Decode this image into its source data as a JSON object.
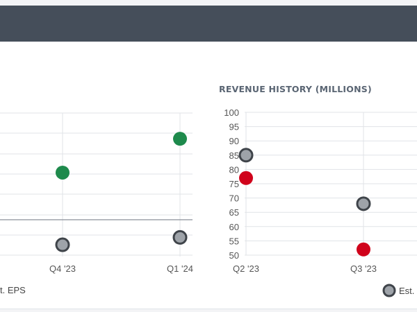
{
  "colors": {
    "header_bg": "#454e5a",
    "grid": "#e0e3e7",
    "eps_actual": "#1e8a4c",
    "estimate": "#9ea3a9",
    "estimate_stroke": "#3f444a",
    "revenue_actual": "#d0021b"
  },
  "eps_chart": {
    "legend_partial_text": "t. EPS"
  },
  "revenue_chart": {
    "title": "REVENUE HISTORY (MILLIONS)",
    "legend_partial_text": "Est. R"
  },
  "chart_data": [
    {
      "type": "scatter",
      "title": "",
      "categories": [
        "Q4 '23",
        "Q1 '24"
      ],
      "series": [
        {
          "name": "",
          "color": "#1e8a4c",
          "values": [
            0.64,
            1.1
          ]
        },
        {
          "name": "Est. EPS",
          "color": "#9ea3a9",
          "values": [
            -0.34,
            -0.24
          ]
        }
      ],
      "ylim": [
        -0.5,
        1.45
      ],
      "zero_line": 0,
      "grid": true,
      "legend": "bottom"
    },
    {
      "type": "scatter",
      "title": "REVENUE HISTORY (MILLIONS)",
      "categories": [
        "Q2 '23",
        "Q3 '23"
      ],
      "series": [
        {
          "name": "",
          "color": "#d0021b",
          "values": [
            77,
            52
          ]
        },
        {
          "name": "Est. R",
          "color": "#9ea3a9",
          "values": [
            85,
            68
          ]
        }
      ],
      "ylim": [
        50,
        100
      ],
      "yticks": [
        50,
        55,
        60,
        65,
        70,
        75,
        80,
        85,
        90,
        95,
        100
      ],
      "grid": true,
      "legend": "bottom"
    }
  ]
}
